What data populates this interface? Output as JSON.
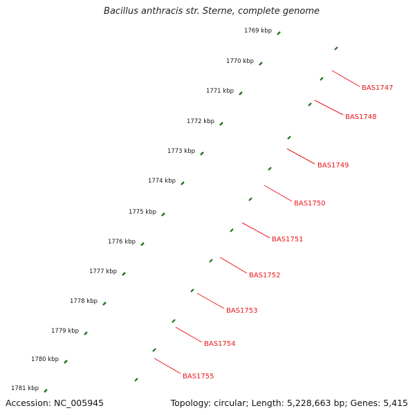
{
  "title": "Bacillus anthracis str. Sterne, complete genome",
  "accession_label": "Accession: NC_005945",
  "summary_label": "Topology: circular; Length: 5,228,663 bp; Genes: 5,415",
  "ticks": [
    "1769 kbp",
    "1770 kbp",
    "1771 kbp",
    "1772 kbp",
    "1773 kbp",
    "1774 kbp",
    "1775 kbp",
    "1776 kbp",
    "1777 kbp",
    "1778 kbp",
    "1779 kbp",
    "1780 kbp",
    "1781 kbp"
  ],
  "gene_labels": [
    "BAS1747",
    "BAS1748",
    "BAS1749",
    "BAS1750",
    "BAS1751",
    "BAS1752",
    "BAS1753",
    "BAS1754",
    "BAS1755"
  ],
  "colors": {
    "gene_red": "#ee1111",
    "gene_red_dark": "#a80000",
    "gene_blue": "#0a14e6",
    "gene_steel": "#4a7db8",
    "gene_orange": "#ff8c00",
    "gene_cyan": "#17c2f5",
    "backbone": "#8a8a8a",
    "tick_dots": "#117a11",
    "label_red": "#e8141b"
  }
}
